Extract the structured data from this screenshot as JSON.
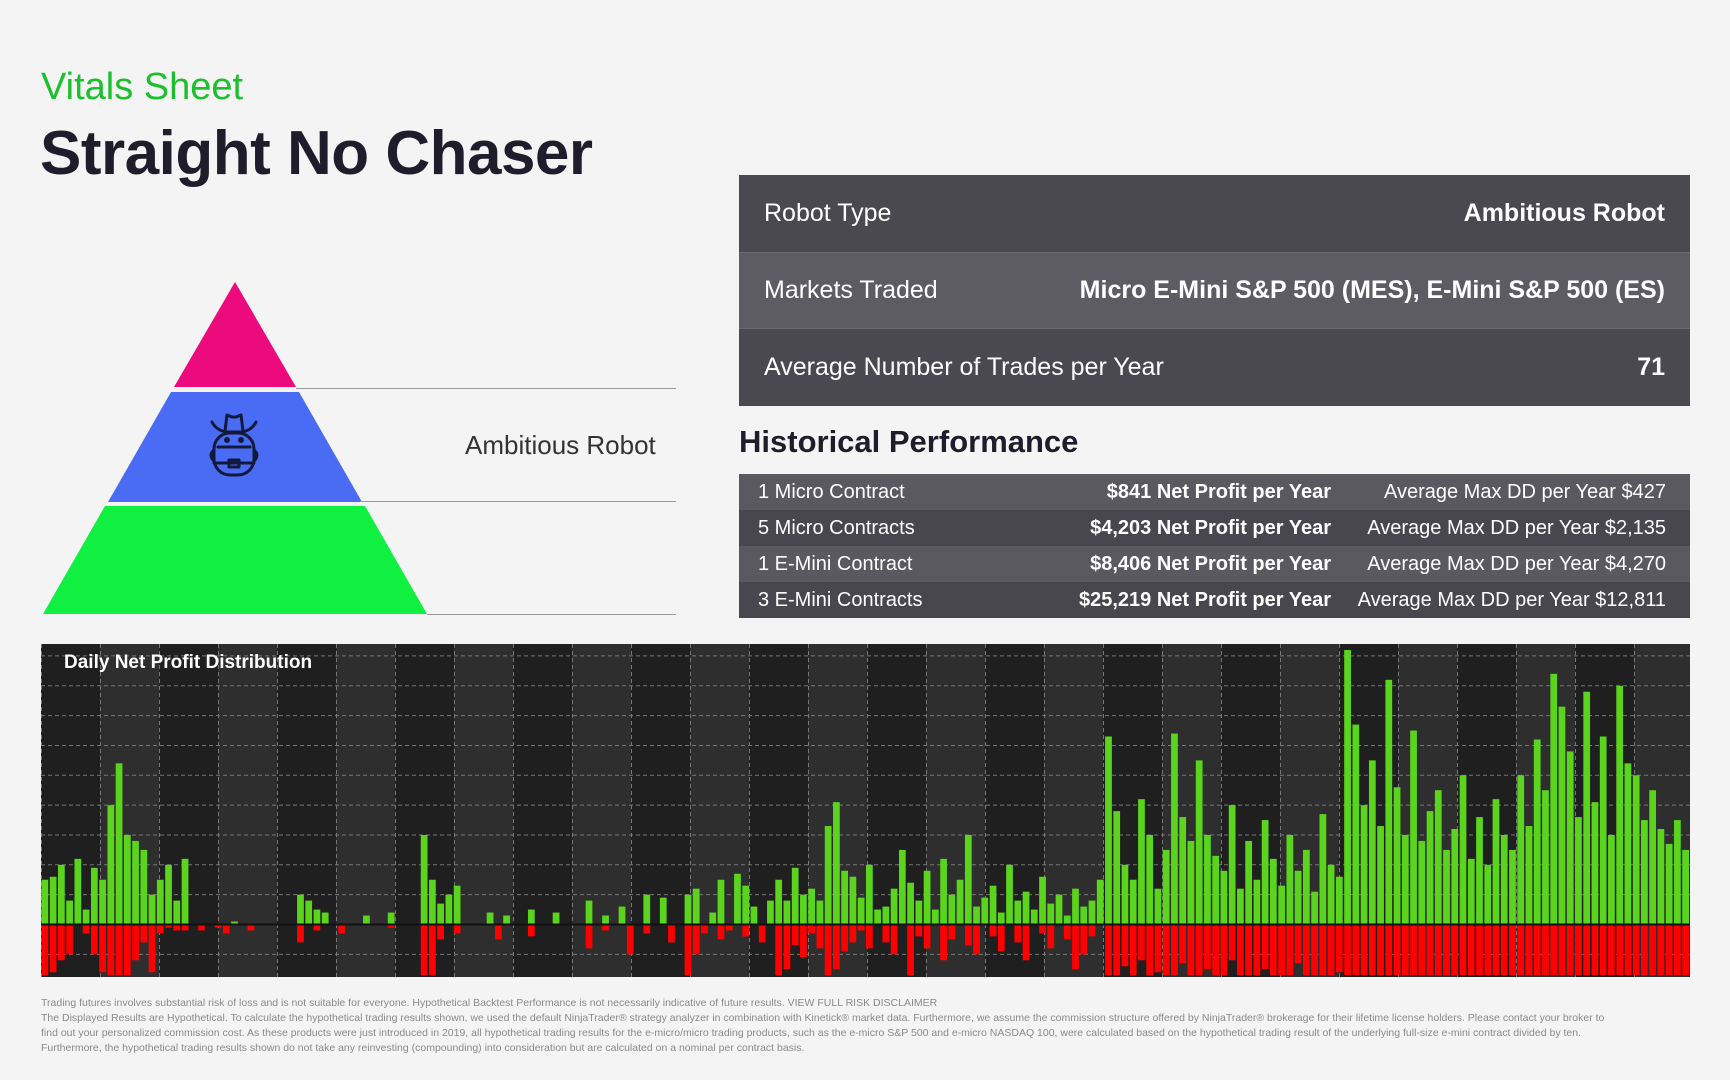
{
  "header": {
    "subtitle": "Vitals Sheet",
    "title": "Straight No Chaser"
  },
  "pyramid": {
    "label": "Ambitious Robot",
    "icon": "cowboy-robot-icon",
    "colors": {
      "top": "#ec0a7c",
      "middle": "#4a6cf4",
      "bottom": "#0ff040"
    }
  },
  "vitals": [
    {
      "label": "Robot Type",
      "value": "Ambitious Robot"
    },
    {
      "label": "Markets Traded",
      "value": "Micro E-Mini S&P 500 (MES), E-Mini S&P 500 (ES)"
    },
    {
      "label": "Average Number of Trades per Year",
      "value": "71"
    }
  ],
  "historical": {
    "title": "Historical Performance",
    "rows": [
      {
        "contract": "1 Micro Contract",
        "profit": "$841 Net Profit per Year",
        "dd": "Average Max DD per Year $427"
      },
      {
        "contract": "5 Micro Contracts",
        "profit": "$4,203 Net Profit per Year",
        "dd": "Average Max DD per Year $2,135"
      },
      {
        "contract": "1 E-Mini Contract",
        "profit": "$8,406 Net Profit per Year",
        "dd": "Average Max DD per Year $4,270"
      },
      {
        "contract": "3 E-Mini Contracts",
        "profit": "$25,219 Net Profit per Year",
        "dd": "Average Max DD per Year $12,811"
      }
    ]
  },
  "chart_data": {
    "type": "bar",
    "title": "Daily Net Profit Distribution",
    "xlabel": "",
    "ylabel": "",
    "ylim": [
      -1.76,
      9.4
    ],
    "grid": true,
    "colors": {
      "profit": "#5ad41c",
      "loss": "#ff0000"
    },
    "series": [
      {
        "name": "profit",
        "values": [
          1.5,
          1.6,
          2,
          0.8,
          2.2,
          0.5,
          1.9,
          1.5,
          4,
          5.4,
          3,
          2.8,
          2.5,
          1,
          1.5,
          2,
          0.8,
          2.2,
          0,
          0,
          0,
          0,
          0,
          0.1,
          0,
          0,
          0,
          0,
          0,
          0,
          0,
          1,
          0.8,
          0.5,
          0.4,
          0,
          0,
          0,
          0,
          0.3,
          0,
          0,
          0.4,
          0,
          0,
          0,
          3,
          1.5,
          0.7,
          1,
          1.3,
          0,
          0,
          0,
          0.4,
          0,
          0.3,
          0,
          0,
          0.5,
          0,
          0,
          0.4,
          0,
          0,
          0,
          0.8,
          0,
          0.3,
          0,
          0.6,
          0,
          0,
          1,
          0,
          0.9,
          0,
          0,
          1,
          1.2,
          0,
          0.4,
          1.5,
          0,
          1.7,
          1.3,
          0.6,
          0,
          0.8,
          1.5,
          0.8,
          1.9,
          1,
          1.2,
          0.8,
          3.3,
          4.1,
          1.8,
          1.6,
          0.9,
          2,
          0.5,
          0.6,
          1.2,
          2.5,
          1.4,
          0.8,
          1.8,
          0.5,
          2.2,
          1,
          1.5,
          3,
          0.6,
          0.9,
          1.3,
          0.4,
          2,
          0.8,
          1.1,
          0.5,
          1.6,
          0.7,
          1,
          0.3,
          1.2,
          0.6,
          0.8,
          1.5,
          6.3,
          3.8,
          2,
          1.5,
          4.2,
          3,
          1.2,
          2.5,
          6.4,
          3.6,
          2.8,
          5.5,
          3,
          2.3,
          1.8,
          4,
          1.2,
          2.8,
          1.5,
          3.5,
          2.2,
          1.3,
          3,
          1.8,
          2.5,
          1.1,
          3.7,
          2,
          1.6,
          9.2,
          6.7,
          4,
          5.5,
          3.3,
          8.2,
          4.6,
          3,
          6.5,
          2.8,
          3.8,
          4.5,
          2.5,
          3.2,
          5,
          2.2,
          3.6,
          2,
          4.2,
          3,
          2.5,
          5,
          3.3,
          6.2,
          4.5,
          8.4,
          7.3,
          5.8,
          3.6,
          7.8,
          4.1,
          6.3,
          3,
          8,
          5.4,
          5,
          3.5,
          4.5,
          3.2,
          2.7,
          3.5,
          2.5
        ]
      },
      {
        "name": "loss",
        "values": [
          -1.7,
          -1.6,
          -1.2,
          -1,
          0,
          -0.3,
          -1,
          -1.6,
          -1.7,
          -1.7,
          -1.7,
          -1.2,
          -0.6,
          -1.6,
          -0.3,
          -0.1,
          -0.2,
          -0.2,
          0,
          -0.2,
          0,
          -0.1,
          -0.3,
          0,
          0,
          -0.2,
          0,
          0,
          0,
          0,
          0,
          -0.6,
          0,
          -0.2,
          0,
          0,
          -0.3,
          0,
          0,
          0,
          0,
          0,
          -0.1,
          0,
          0,
          0,
          -1.7,
          -1.7,
          -0.5,
          0,
          -0.3,
          0,
          0,
          0,
          0,
          -0.5,
          0,
          0,
          0,
          -0.4,
          0,
          0,
          0,
          0,
          0,
          0,
          -0.8,
          0,
          -0.2,
          0,
          0,
          -1,
          0,
          -0.3,
          0,
          0,
          -0.6,
          0,
          -1.7,
          -1,
          -0.3,
          0,
          -0.5,
          -0.2,
          0,
          -0.4,
          0,
          -0.6,
          0,
          -1.7,
          -1.5,
          -0.7,
          -1.1,
          -0.3,
          -0.8,
          -1.7,
          -1.5,
          -0.9,
          -0.6,
          -0.2,
          -0.8,
          0,
          -0.6,
          -1,
          0,
          -1.7,
          -0.4,
          -0.8,
          0,
          -1.2,
          -0.5,
          0,
          -0.7,
          -1,
          0,
          -0.4,
          -0.9,
          0,
          -0.6,
          -1.2,
          0,
          -0.3,
          -0.8,
          0,
          -0.5,
          -1.5,
          -1,
          -0.4,
          0,
          -1.7,
          -1.7,
          -1.4,
          -1.7,
          -1.2,
          -1.7,
          -1.6,
          -1.7,
          -1.7,
          -1.3,
          -1.7,
          -1.7,
          -1.5,
          -1.7,
          -1.7,
          -1.2,
          -1.7,
          -1.7,
          -1.7,
          -1.5,
          -1.7,
          -1.7,
          -1.7,
          -1.3,
          -1.7,
          -1.7,
          -1.7,
          -1.7,
          -1.6,
          -1.7,
          -1.7,
          -1.7,
          -1.7,
          -1.7,
          -1.7,
          -1.7,
          -1.7,
          -1.7,
          -1.7,
          -1.7,
          -1.7,
          -1.7,
          -1.7,
          -1.7,
          -1.7,
          -1.7,
          -1.7,
          -1.7,
          -1.7,
          -1.7,
          -1.7,
          -1.7,
          -1.7,
          -1.7,
          -1.7,
          -1.7,
          -1.7,
          -1.7,
          -1.7,
          -1.7,
          -1.7,
          -1.7,
          -1.7,
          -1.7,
          -1.7,
          -1.7,
          -1.7,
          -1.7,
          -1.7,
          -1.7,
          -1.7
        ]
      }
    ]
  },
  "disclaimer": [
    "Trading futures involves substantial risk of loss and is not suitable for everyone. Hypothetical Backtest Performance is not necessarily indicative of future results. VIEW FULL RISK DISCLAIMER",
    "The Displayed Results are Hypothetical. To calculate the hypothetical trading results shown, we used the default NinjaTrader® strategy analyzer in combination with Kinetick® market data. Furthermore, we assume the commission structure offered by NinjaTrader® brokerage for their lifetime license holders. Please contact your broker to",
    "find out your personalized commission cost. As these products were just introduced in 2019, all hypothetical trading results for the e-micro/micro trading products, such as the e-micro S&P 500 and e-micro NASDAQ 100, were calculated based on the hypothetical trading result of the underlying full-size e-mini contract divided by ten.",
    "Furthermore, the hypothetical trading results shown do not take any reinvesting (compounding) into consideration but are calculated on a nominal per contract basis."
  ]
}
